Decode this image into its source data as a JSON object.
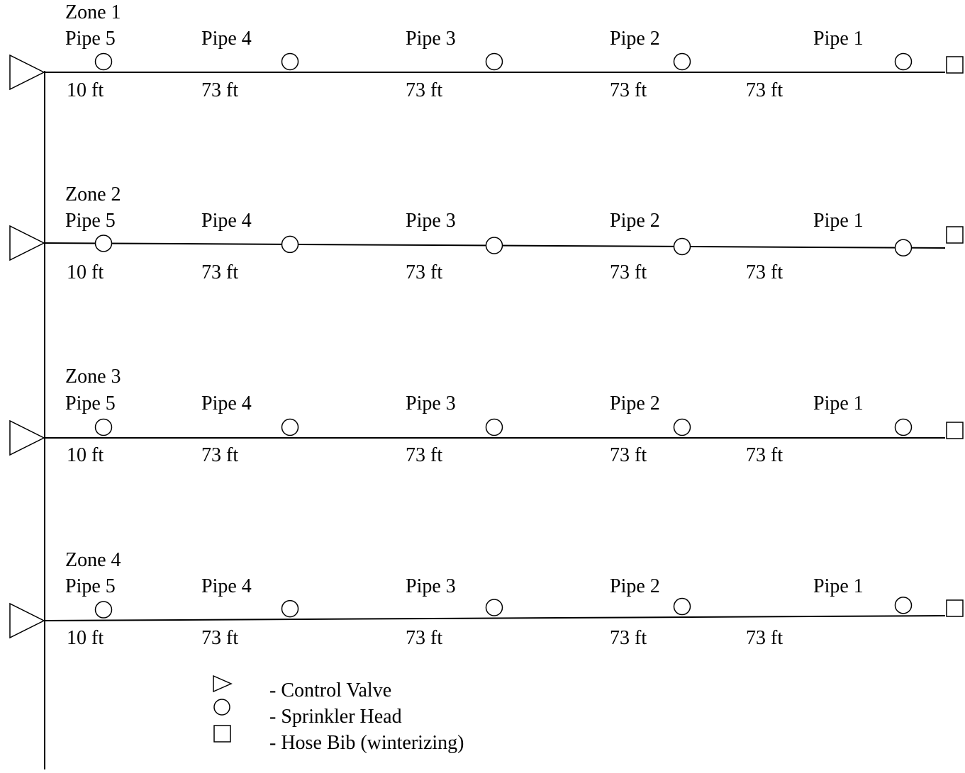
{
  "colors": {
    "line": "#000000",
    "background": "#ffffff"
  },
  "zones": [
    {
      "name": "Zone 1",
      "pipes": [
        "Pipe 5",
        "Pipe 4",
        "Pipe 3",
        "Pipe 2",
        "Pipe 1"
      ],
      "lengths": [
        "10 ft",
        "73 ft",
        "73 ft",
        "73 ft",
        "73 ft"
      ]
    },
    {
      "name": "Zone 2",
      "pipes": [
        "Pipe 5",
        "Pipe 4",
        "Pipe 3",
        "Pipe 2",
        "Pipe 1"
      ],
      "lengths": [
        "10 ft",
        "73 ft",
        "73 ft",
        "73 ft",
        "73 ft"
      ]
    },
    {
      "name": "Zone 3",
      "pipes": [
        "Pipe 5",
        "Pipe 4",
        "Pipe 3",
        "Pipe 2",
        "Pipe 1"
      ],
      "lengths": [
        "10 ft",
        "73 ft",
        "73 ft",
        "73 ft",
        "73 ft"
      ]
    },
    {
      "name": "Zone 4",
      "pipes": [
        "Pipe 5",
        "Pipe 4",
        "Pipe 3",
        "Pipe 2",
        "Pipe 1"
      ],
      "lengths": [
        "10 ft",
        "73 ft",
        "73 ft",
        "73 ft",
        "73 ft"
      ]
    }
  ],
  "legend": {
    "control_valve": "- Control Valve",
    "sprinkler_head": "- Sprinkler Head",
    "hose_bib": "- Hose Bib (winterizing)"
  },
  "icons": {
    "control_valve": "triangle-icon",
    "sprinkler_head": "circle-icon",
    "hose_bib": "square-icon"
  }
}
